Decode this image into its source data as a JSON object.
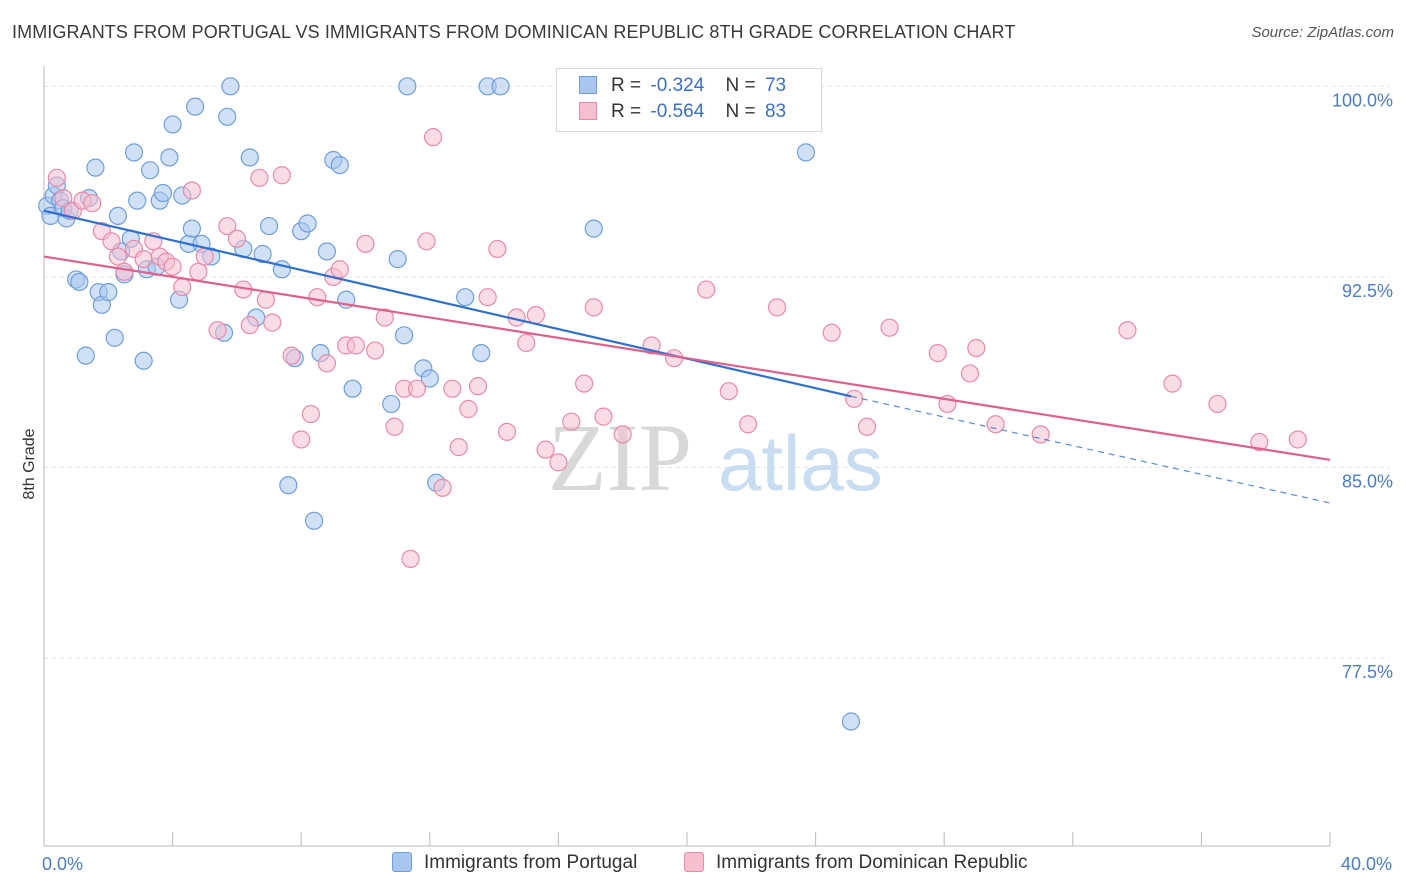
{
  "title": "IMMIGRANTS FROM PORTUGAL VS IMMIGRANTS FROM DOMINICAN REPUBLIC 8TH GRADE CORRELATION CHART",
  "source": "Source: ZipAtlas.com",
  "watermark": {
    "zip": "ZIP",
    "atlas": "atlas"
  },
  "legend": {
    "r_label": "R =",
    "n_label": "N =",
    "rows": [
      {
        "r": "-0.324",
        "n": "73"
      },
      {
        "r": "-0.564",
        "n": "83"
      }
    ]
  },
  "colors": {
    "blue_fill": "#a9c7ee",
    "blue_stroke": "#6e9fdc",
    "blue_line": "#2f6fd1",
    "pink_fill": "#f6bfd0",
    "pink_stroke": "#e98aa8",
    "pink_line": "#e0608c",
    "tick_label": "#4a7cc9",
    "grid": "#e3e3e3"
  },
  "chart_data": {
    "type": "scatter",
    "title": "IMMIGRANTS FROM PORTUGAL VS IMMIGRANTS FROM DOMINICAN REPUBLIC 8TH GRADE CORRELATION CHART",
    "xlabel": "",
    "ylabel": "8th Grade",
    "xlim": [
      0,
      40
    ],
    "ylim": [
      70.1,
      100.8
    ],
    "x_tick_labels": [
      "0.0%",
      "40.0%"
    ],
    "y_ticks": [
      {
        "value": 100.0,
        "label": "100.0%"
      },
      {
        "value": 92.5,
        "label": "92.5%"
      },
      {
        "value": 85.0,
        "label": "85.0%"
      },
      {
        "value": 77.5,
        "label": "77.5%"
      }
    ],
    "grid": true,
    "legend_position": "top-center",
    "series": [
      {
        "name": "Immigrants from Portugal",
        "r": -0.324,
        "n": 73,
        "trend": {
          "x0": 0,
          "y0": 95.1,
          "x1": 25.1,
          "y1": 87.8,
          "dashed_to_x": 40,
          "dashed_to_y": 83.6
        },
        "points": [
          [
            0.1,
            95.3
          ],
          [
            0.2,
            94.9
          ],
          [
            0.3,
            95.7
          ],
          [
            0.4,
            96.1
          ],
          [
            0.5,
            95.5
          ],
          [
            0.6,
            95.2
          ],
          [
            0.7,
            94.8
          ],
          [
            0.8,
            95.1
          ],
          [
            1.0,
            92.4
          ],
          [
            1.1,
            92.3
          ],
          [
            1.3,
            89.4
          ],
          [
            1.4,
            95.6
          ],
          [
            1.6,
            96.8
          ],
          [
            1.7,
            91.9
          ],
          [
            1.8,
            91.4
          ],
          [
            2.0,
            91.9
          ],
          [
            2.2,
            90.1
          ],
          [
            2.3,
            94.9
          ],
          [
            2.4,
            93.5
          ],
          [
            2.5,
            92.6
          ],
          [
            2.7,
            94.0
          ],
          [
            2.8,
            97.4
          ],
          [
            2.9,
            95.5
          ],
          [
            3.1,
            89.2
          ],
          [
            3.2,
            92.8
          ],
          [
            3.3,
            96.7
          ],
          [
            3.5,
            92.9
          ],
          [
            3.6,
            95.5
          ],
          [
            3.7,
            95.8
          ],
          [
            3.9,
            97.2
          ],
          [
            4.0,
            98.5
          ],
          [
            4.2,
            91.6
          ],
          [
            4.3,
            95.7
          ],
          [
            4.5,
            93.8
          ],
          [
            4.6,
            94.4
          ],
          [
            4.7,
            99.2
          ],
          [
            4.9,
            93.8
          ],
          [
            5.2,
            93.3
          ],
          [
            5.6,
            90.3
          ],
          [
            5.7,
            98.8
          ],
          [
            5.8,
            100.0
          ],
          [
            6.2,
            93.6
          ],
          [
            6.4,
            97.2
          ],
          [
            6.6,
            90.9
          ],
          [
            6.8,
            93.4
          ],
          [
            7.0,
            94.5
          ],
          [
            7.4,
            92.8
          ],
          [
            7.6,
            84.3
          ],
          [
            7.8,
            89.3
          ],
          [
            8.0,
            94.3
          ],
          [
            8.2,
            94.6
          ],
          [
            8.4,
            82.9
          ],
          [
            8.6,
            89.5
          ],
          [
            8.8,
            93.5
          ],
          [
            9.0,
            97.1
          ],
          [
            9.2,
            96.9
          ],
          [
            9.4,
            91.6
          ],
          [
            9.6,
            88.1
          ],
          [
            10.8,
            87.5
          ],
          [
            11.0,
            93.2
          ],
          [
            11.2,
            90.2
          ],
          [
            11.3,
            100.0
          ],
          [
            11.8,
            88.9
          ],
          [
            12.0,
            88.5
          ],
          [
            12.2,
            84.4
          ],
          [
            13.1,
            91.7
          ],
          [
            13.6,
            89.5
          ],
          [
            13.8,
            100.0
          ],
          [
            14.2,
            100.0
          ],
          [
            16.6,
            100.0
          ],
          [
            17.1,
            94.4
          ],
          [
            23.7,
            97.4
          ],
          [
            25.1,
            75.0
          ]
        ]
      },
      {
        "name": "Immigrants from Dominican Republic",
        "r": -0.564,
        "n": 83,
        "trend": {
          "x0": 0,
          "y0": 93.3,
          "x1": 40,
          "y1": 85.3
        },
        "points": [
          [
            0.4,
            96.4
          ],
          [
            0.6,
            95.6
          ],
          [
            0.9,
            95.1
          ],
          [
            1.2,
            95.5
          ],
          [
            1.5,
            95.4
          ],
          [
            1.8,
            94.3
          ],
          [
            2.1,
            93.9
          ],
          [
            2.3,
            93.3
          ],
          [
            2.5,
            92.7
          ],
          [
            2.8,
            93.6
          ],
          [
            3.1,
            93.2
          ],
          [
            3.4,
            93.9
          ],
          [
            3.6,
            93.3
          ],
          [
            3.8,
            93.1
          ],
          [
            4.0,
            92.9
          ],
          [
            4.3,
            92.1
          ],
          [
            4.6,
            95.9
          ],
          [
            4.8,
            92.7
          ],
          [
            5.0,
            93.3
          ],
          [
            5.4,
            90.4
          ],
          [
            5.7,
            94.5
          ],
          [
            6.0,
            94.0
          ],
          [
            6.2,
            92.0
          ],
          [
            6.4,
            90.6
          ],
          [
            6.7,
            96.4
          ],
          [
            6.9,
            91.6
          ],
          [
            7.1,
            90.7
          ],
          [
            7.4,
            96.5
          ],
          [
            7.7,
            89.4
          ],
          [
            8.0,
            86.1
          ],
          [
            8.3,
            87.1
          ],
          [
            8.5,
            91.7
          ],
          [
            8.8,
            89.1
          ],
          [
            9.0,
            92.5
          ],
          [
            9.2,
            92.8
          ],
          [
            9.4,
            89.8
          ],
          [
            9.7,
            89.8
          ],
          [
            10.0,
            93.8
          ],
          [
            10.3,
            89.6
          ],
          [
            10.6,
            90.9
          ],
          [
            10.9,
            86.6
          ],
          [
            11.2,
            88.1
          ],
          [
            11.4,
            81.4
          ],
          [
            11.6,
            88.1
          ],
          [
            11.9,
            93.9
          ],
          [
            12.1,
            98.0
          ],
          [
            12.4,
            84.2
          ],
          [
            12.7,
            88.1
          ],
          [
            12.9,
            85.8
          ],
          [
            13.2,
            87.3
          ],
          [
            13.5,
            88.2
          ],
          [
            13.8,
            91.7
          ],
          [
            14.1,
            93.6
          ],
          [
            14.4,
            86.4
          ],
          [
            14.7,
            90.9
          ],
          [
            15.0,
            89.9
          ],
          [
            15.3,
            91.0
          ],
          [
            15.6,
            85.7
          ],
          [
            16.0,
            85.2
          ],
          [
            16.4,
            86.8
          ],
          [
            16.8,
            88.3
          ],
          [
            17.1,
            91.3
          ],
          [
            17.4,
            87.0
          ],
          [
            18.0,
            86.3
          ],
          [
            18.9,
            89.8
          ],
          [
            19.6,
            89.3
          ],
          [
            20.6,
            92.0
          ],
          [
            21.3,
            88.0
          ],
          [
            21.9,
            86.7
          ],
          [
            22.8,
            91.3
          ],
          [
            24.5,
            90.3
          ],
          [
            25.2,
            87.7
          ],
          [
            25.6,
            86.6
          ],
          [
            26.3,
            90.5
          ],
          [
            27.8,
            89.5
          ],
          [
            28.1,
            87.5
          ],
          [
            28.8,
            88.7
          ],
          [
            29.0,
            89.7
          ],
          [
            29.6,
            86.7
          ],
          [
            31.0,
            86.3
          ],
          [
            33.7,
            90.4
          ],
          [
            35.1,
            88.3
          ],
          [
            36.5,
            87.5
          ],
          [
            37.8,
            86.0
          ],
          [
            39.0,
            86.1
          ]
        ]
      }
    ]
  }
}
